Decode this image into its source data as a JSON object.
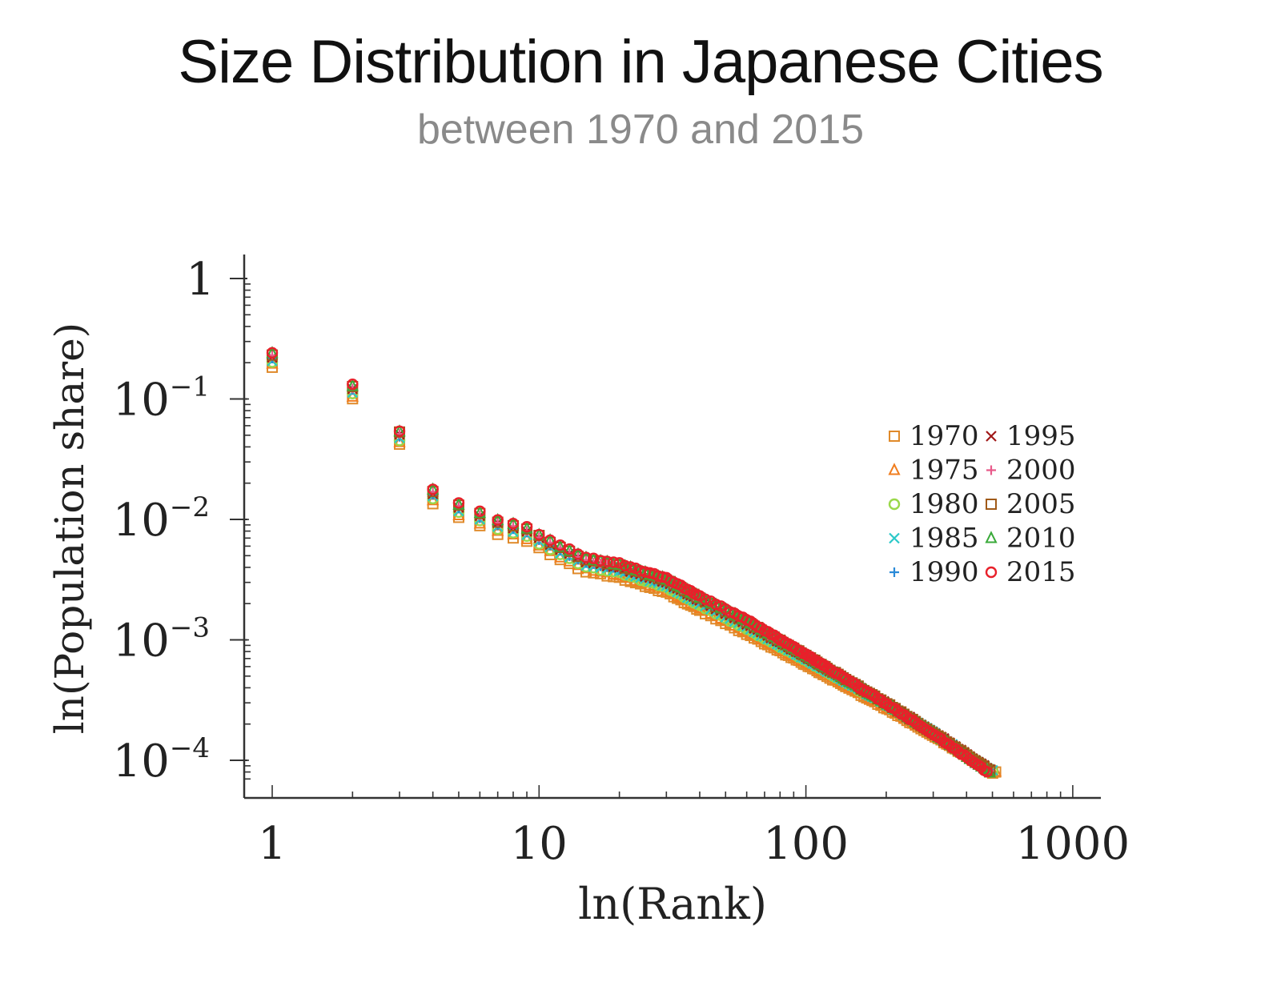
{
  "chart_data": {
    "type": "scatter",
    "title": "Size Distribution in Japanese Cities",
    "subtitle": "between 1970 and 2015",
    "xlabel": "ln(Rank)",
    "ylabel": "ln(Population share)",
    "xscale": "log",
    "yscale": "log",
    "xlim": [
      0.9,
      1100
    ],
    "ylim": [
      7e-05,
      1.3
    ],
    "x_ticks": [
      {
        "value": 1,
        "label": "1"
      },
      {
        "value": 10,
        "label": "10"
      },
      {
        "value": 100,
        "label": "100"
      },
      {
        "value": 1000,
        "label": "1000"
      }
    ],
    "y_ticks": [
      {
        "value": 1,
        "base": "1",
        "exp": ""
      },
      {
        "value": 0.1,
        "base": "10",
        "exp": "−1"
      },
      {
        "value": 0.01,
        "base": "10",
        "exp": "−2"
      },
      {
        "value": 0.001,
        "base": "10",
        "exp": "−3"
      },
      {
        "value": 0.0001,
        "base": "10",
        "exp": "−4"
      }
    ],
    "legend_position": "right",
    "series": [
      {
        "name": "1970",
        "marker": "square",
        "color": "#e08a2a",
        "scale": 0.8,
        "n_ranks": 520
      },
      {
        "name": "1975",
        "marker": "triangle",
        "color": "#f07d1e",
        "scale": 0.84,
        "n_ranks": 515
      },
      {
        "name": "1980",
        "marker": "circle",
        "color": "#9ad84a",
        "scale": 0.88,
        "n_ranks": 510
      },
      {
        "name": "1985",
        "marker": "x",
        "color": "#2ac8c8",
        "scale": 0.91,
        "n_ranks": 505
      },
      {
        "name": "1990",
        "marker": "plus",
        "color": "#2a8ad8",
        "scale": 0.94,
        "n_ranks": 500
      },
      {
        "name": "1995",
        "marker": "x",
        "color": "#a01818",
        "scale": 0.97,
        "n_ranks": 498
      },
      {
        "name": "2000",
        "marker": "plus",
        "color": "#e85a8a",
        "scale": 0.99,
        "n_ranks": 495
      },
      {
        "name": "2005",
        "marker": "square",
        "color": "#a05a18",
        "scale": 1.01,
        "n_ranks": 492
      },
      {
        "name": "2010",
        "marker": "triangle",
        "color": "#3aaa3a",
        "scale": 1.03,
        "n_ranks": 490
      },
      {
        "name": "2015",
        "marker": "circle",
        "color": "#e8202a",
        "scale": 1.05,
        "n_ranks": 480
      }
    ],
    "rank_share_base": [
      [
        1,
        0.23
      ],
      [
        2,
        0.125
      ],
      [
        3,
        0.052
      ],
      [
        4,
        0.017
      ],
      [
        5,
        0.013
      ],
      [
        6,
        0.011
      ],
      [
        7,
        0.0095
      ],
      [
        8,
        0.0088
      ],
      [
        9,
        0.0082
      ],
      [
        10,
        0.0072
      ],
      [
        12,
        0.0058
      ],
      [
        15,
        0.0046
      ],
      [
        20,
        0.0041
      ],
      [
        25,
        0.0035
      ],
      [
        30,
        0.0031
      ],
      [
        40,
        0.0022
      ],
      [
        60,
        0.0014
      ],
      [
        100,
        0.00075
      ],
      [
        200,
        0.00031
      ],
      [
        300,
        0.00018
      ],
      [
        500,
        8.5e-05
      ]
    ]
  }
}
